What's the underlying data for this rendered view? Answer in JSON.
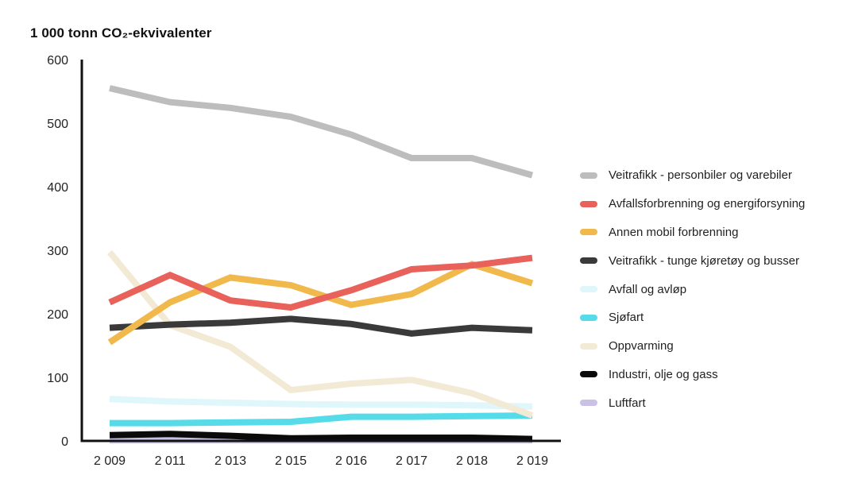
{
  "chart_data": {
    "type": "line",
    "title": "1 000 tonn CO₂-ekvivalenter",
    "xlabel": "",
    "ylabel": "1 000 tonn CO₂-ekvivalenter",
    "categories": [
      "2 009",
      "2 011",
      "2 013",
      "2 015",
      "2 016",
      "2 017",
      "2 018",
      "2 019"
    ],
    "y_ticks": [
      0,
      100,
      200,
      300,
      400,
      500,
      600
    ],
    "ylim": [
      0,
      600
    ],
    "grid": false,
    "legend_position": "right",
    "series": [
      {
        "name": "Veitrafikk - personbiler og varebiler",
        "color": "#bdbdbd",
        "values": [
          555,
          533,
          524,
          510,
          482,
          445,
          445,
          418
        ]
      },
      {
        "name": "Avfallsforbrenning og energiforsyning",
        "color": "#e8615a",
        "values": [
          218,
          261,
          221,
          210,
          237,
          270,
          276,
          288
        ]
      },
      {
        "name": "Annen mobil forbrenning",
        "color": "#f1b84b",
        "values": [
          155,
          218,
          257,
          245,
          214,
          231,
          278,
          248
        ]
      },
      {
        "name": "Veitrafikk - tunge kjøretøy og busser",
        "color": "#3a3a3a",
        "values": [
          178,
          183,
          186,
          192,
          184,
          169,
          178,
          174
        ]
      },
      {
        "name": "Avfall og avløp",
        "color": "#dff6fa",
        "values": [
          66,
          62,
          60,
          58,
          57,
          57,
          56,
          54
        ]
      },
      {
        "name": "Sjøfart",
        "color": "#56dbe9",
        "values": [
          28,
          28,
          29,
          30,
          38,
          38,
          39,
          40
        ]
      },
      {
        "name": "Oppvarming",
        "color": "#f3ead6",
        "values": [
          297,
          182,
          148,
          80,
          90,
          96,
          75,
          40
        ]
      },
      {
        "name": "Industri, olje og gass",
        "color": "#0a0a0a",
        "values": [
          9,
          11,
          8,
          4,
          5,
          5,
          5,
          3
        ]
      },
      {
        "name": "Luftfart",
        "color": "#c9c2e6",
        "values": [
          1,
          1,
          1,
          1,
          1,
          1,
          1,
          1
        ]
      }
    ]
  }
}
